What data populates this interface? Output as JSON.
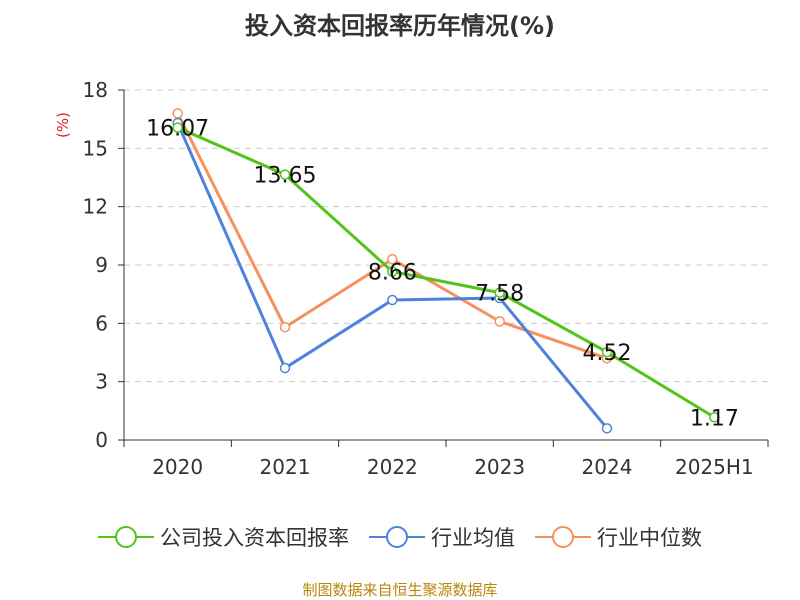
{
  "title": "投入资本回报率历年情况(%)",
  "source": "制图数据来自恒生聚源数据库",
  "chart_data": {
    "type": "line",
    "title": "投入资本回报率历年情况(%)",
    "ylabel": "(%)",
    "xlabel": "",
    "categories": [
      "2020",
      "2021",
      "2022",
      "2023",
      "2024",
      "2025H1"
    ],
    "ylim": [
      0,
      18
    ],
    "yticks": [
      0,
      3,
      6,
      9,
      12,
      15,
      18
    ],
    "grid": true,
    "legend_position": "bottom",
    "series": [
      {
        "name": "公司投入资本回报率",
        "color": "#52c41a",
        "values": [
          16.07,
          13.65,
          8.66,
          7.58,
          4.52,
          1.17
        ],
        "labels": [
          "16.07",
          "13.65",
          "8.66",
          "7.58",
          "4.52",
          "1.17"
        ]
      },
      {
        "name": "行业均值",
        "color": "#4f81de",
        "values": [
          16.3,
          3.7,
          7.2,
          7.3,
          0.6,
          null
        ]
      },
      {
        "name": "行业中位数",
        "color": "#f5915c",
        "values": [
          16.8,
          5.8,
          9.3,
          6.1,
          4.2,
          null
        ]
      }
    ]
  }
}
